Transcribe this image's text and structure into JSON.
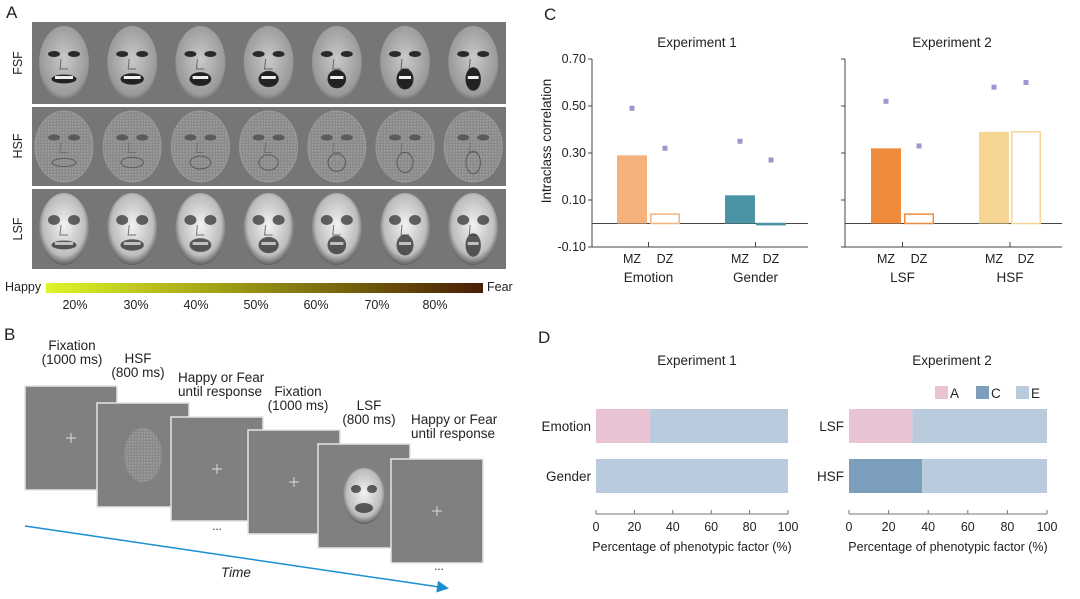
{
  "panel_labels": {
    "a": "A",
    "b": "B",
    "c": "C",
    "d": "D"
  },
  "panel_a": {
    "rows": [
      "FSF",
      "HSF",
      "LSF"
    ],
    "colorbar": {
      "left_label": "Happy",
      "right_label": "Fear",
      "ticks": [
        "20%",
        "30%",
        "40%",
        "50%",
        "60%",
        "70%",
        "80%"
      ],
      "colors": [
        "#e0f52a",
        "#8f8a10",
        "#4a1e05"
      ]
    }
  },
  "panel_b": {
    "steps": [
      {
        "line1": "Fixation",
        "line2": "(1000 ms)"
      },
      {
        "line1": "HSF",
        "line2": "(800 ms)"
      },
      {
        "line1": "Happy or Fear",
        "line2": "until response"
      },
      {
        "line1": "Fixation",
        "line2": "(1000 ms)"
      },
      {
        "line1": "LSF",
        "line2": "(800 ms)"
      },
      {
        "line1": "Happy or Fear",
        "line2": "until response"
      }
    ],
    "ellipsis": "...",
    "time_label": "Time",
    "arrow_color": "#1a8fd0"
  },
  "chart_data": [
    {
      "type": "bar",
      "title": "Experiment 1",
      "ylabel": "Intraclass correlation",
      "ylim": [
        -0.1,
        0.7
      ],
      "yticks": [
        "0.70",
        "0.50",
        "0.30",
        "0.10",
        "-0.10"
      ],
      "groups": [
        {
          "name": "Emotion",
          "color": "#f6b27c",
          "bars": [
            {
              "label": "MZ",
              "value": 0.29,
              "filled": true,
              "point": 0.49
            },
            {
              "label": "DZ",
              "value": 0.04,
              "filled": false,
              "point": 0.32
            }
          ]
        },
        {
          "name": "Gender",
          "color": "#4a94a5",
          "bars": [
            {
              "label": "MZ",
              "value": 0.12,
              "filled": true,
              "point": 0.35
            },
            {
              "label": "DZ",
              "value": -0.005,
              "filled": false,
              "point": 0.27
            }
          ]
        }
      ],
      "point_color": "#9d97cf"
    },
    {
      "type": "bar",
      "title": "Experiment 2",
      "ylim": [
        -0.1,
        0.7
      ],
      "groups": [
        {
          "name": "LSF",
          "color": "#f08b3b",
          "bars": [
            {
              "label": "MZ",
              "value": 0.32,
              "filled": true,
              "point": 0.52
            },
            {
              "label": "DZ",
              "value": 0.04,
              "filled": false,
              "point": 0.33
            }
          ]
        },
        {
          "name": "HSF",
          "color": "#f6d692",
          "bars": [
            {
              "label": "MZ",
              "value": 0.39,
              "filled": true,
              "point": 0.58
            },
            {
              "label": "DZ",
              "value": 0.39,
              "filled": false,
              "point": 0.6
            }
          ]
        }
      ],
      "point_color": "#9d97cf"
    },
    {
      "type": "bar",
      "orientation": "horizontal-stacked",
      "title": "Experiment 1",
      "xlabel": "Percentage of phenotypic factor (%)",
      "xlim": [
        0,
        100
      ],
      "xticks": [
        "0",
        "20",
        "40",
        "60",
        "80",
        "100"
      ],
      "categories": [
        "Emotion",
        "Gender"
      ],
      "series": [
        {
          "name": "A",
          "color": "#e9c3d4",
          "values": [
            28,
            0
          ]
        },
        {
          "name": "C",
          "color": "#7c9fbd",
          "values": [
            0,
            0
          ]
        },
        {
          "name": "E",
          "color": "#b9cbdc",
          "values": [
            72,
            100
          ]
        }
      ]
    },
    {
      "type": "bar",
      "orientation": "horizontal-stacked",
      "title": "Experiment 2",
      "xlabel": "Percentage of phenotypic factor (%)",
      "xlim": [
        0,
        100
      ],
      "xticks": [
        "0",
        "20",
        "40",
        "60",
        "80",
        "100"
      ],
      "categories": [
        "LSF",
        "HSF"
      ],
      "legend": "top-right",
      "series": [
        {
          "name": "A",
          "color": "#e9c3d4",
          "values": [
            32,
            0
          ]
        },
        {
          "name": "C",
          "color": "#7c9fbd",
          "values": [
            0,
            37
          ]
        },
        {
          "name": "E",
          "color": "#b9cbdc",
          "values": [
            68,
            63
          ]
        }
      ]
    }
  ]
}
